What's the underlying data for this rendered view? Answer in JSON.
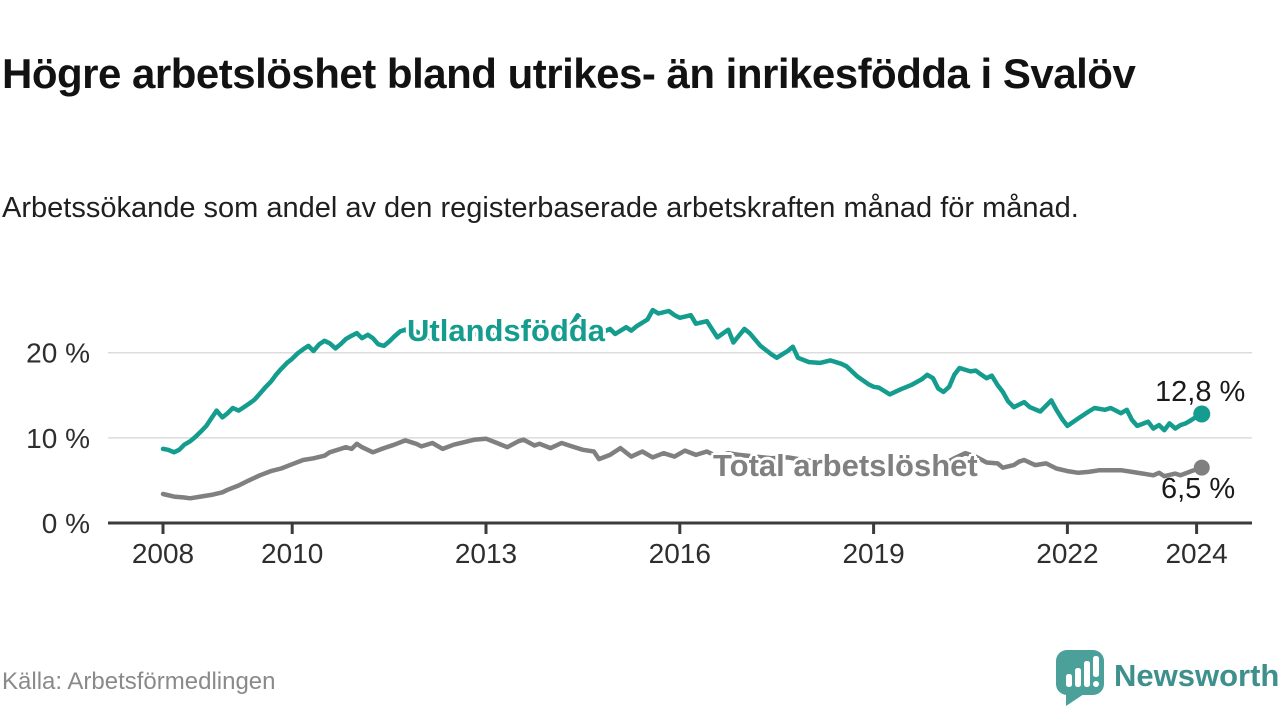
{
  "header": {
    "title": "Högre arbetslöshet bland utrikes- än inrikesfödda i Svalöv",
    "subtitle": "Arbetssökande som andel av den registerbaserade arbetskraften månad för månad."
  },
  "footer": {
    "source": "Källa: Arbetsförmedlingen",
    "logo_text": "Newsworthy"
  },
  "colors": {
    "teal": "#149c8f",
    "gray": "#808080",
    "axis": "#3b3b3b",
    "gridline": "#dcdcdc",
    "tick_text": "#2e2e2e",
    "logo_badge": "#4ca09a",
    "logo_text": "#3e908c"
  },
  "chart_data": {
    "type": "line",
    "title": "Högre arbetslöshet bland utrikes- än inrikesfödda i Svalöv",
    "subtitle": "Arbetssökande som andel av den registerbaserade arbetskraften månad för månad.",
    "unit": "%",
    "grid": "horizontal",
    "legend_position": "inline-labels",
    "xlim": [
      2007.6,
      2024.9
    ],
    "ylim": [
      0,
      26
    ],
    "x_ticks": [
      {
        "value": 2008,
        "label": "2008"
      },
      {
        "value": 2010,
        "label": "2010"
      },
      {
        "value": 2013,
        "label": "2013"
      },
      {
        "value": 2016,
        "label": "2016"
      },
      {
        "value": 2019,
        "label": "2019"
      },
      {
        "value": 2022,
        "label": "2022"
      },
      {
        "value": 2024,
        "label": "2024"
      }
    ],
    "y_ticks": [
      {
        "value": 0,
        "label": "0 %"
      },
      {
        "value": 10,
        "label": "10 %"
      },
      {
        "value": 20,
        "label": "20 %"
      }
    ],
    "series": [
      {
        "name": "Utlandsfödda",
        "color": "#149c8f",
        "end_label": "12,8 %",
        "end_value": 12.8,
        "points": [
          [
            2008.0,
            8.7
          ],
          [
            2008.08,
            8.6
          ],
          [
            2008.17,
            8.3
          ],
          [
            2008.25,
            8.6
          ],
          [
            2008.33,
            9.2
          ],
          [
            2008.42,
            9.6
          ],
          [
            2008.5,
            10.1
          ],
          [
            2008.58,
            10.7
          ],
          [
            2008.67,
            11.4
          ],
          [
            2008.75,
            12.3
          ],
          [
            2008.83,
            13.2
          ],
          [
            2008.92,
            12.4
          ],
          [
            2009.0,
            12.9
          ],
          [
            2009.08,
            13.5
          ],
          [
            2009.17,
            13.2
          ],
          [
            2009.25,
            13.6
          ],
          [
            2009.33,
            14.0
          ],
          [
            2009.42,
            14.5
          ],
          [
            2009.5,
            15.2
          ],
          [
            2009.58,
            15.9
          ],
          [
            2009.67,
            16.6
          ],
          [
            2009.75,
            17.4
          ],
          [
            2009.83,
            18.1
          ],
          [
            2009.92,
            18.8
          ],
          [
            2010.0,
            19.3
          ],
          [
            2010.08,
            19.9
          ],
          [
            2010.17,
            20.4
          ],
          [
            2010.25,
            20.8
          ],
          [
            2010.33,
            20.2
          ],
          [
            2010.42,
            21.0
          ],
          [
            2010.5,
            21.4
          ],
          [
            2010.58,
            21.1
          ],
          [
            2010.67,
            20.5
          ],
          [
            2010.75,
            21.0
          ],
          [
            2010.83,
            21.6
          ],
          [
            2010.92,
            22.0
          ],
          [
            2011.0,
            22.3
          ],
          [
            2011.08,
            21.7
          ],
          [
            2011.17,
            22.1
          ],
          [
            2011.25,
            21.7
          ],
          [
            2011.33,
            21.0
          ],
          [
            2011.42,
            20.8
          ],
          [
            2011.5,
            21.3
          ],
          [
            2011.58,
            21.9
          ],
          [
            2011.67,
            22.5
          ],
          [
            2011.75,
            22.7
          ],
          [
            2011.83,
            22.2
          ],
          [
            2011.92,
            22.5
          ],
          [
            2012.0,
            22.1
          ],
          [
            2012.17,
            21.6
          ],
          [
            2012.33,
            22.0
          ],
          [
            2012.5,
            21.5
          ],
          [
            2012.67,
            21.9
          ],
          [
            2012.83,
            22.2
          ],
          [
            2013.0,
            21.8
          ],
          [
            2013.17,
            22.2
          ],
          [
            2013.33,
            21.7
          ],
          [
            2013.5,
            22.0
          ],
          [
            2013.67,
            22.4
          ],
          [
            2013.83,
            21.9
          ],
          [
            2014.0,
            21.8
          ],
          [
            2014.17,
            22.3
          ],
          [
            2014.33,
            23.3
          ],
          [
            2014.42,
            24.4
          ],
          [
            2014.5,
            23.7
          ],
          [
            2014.58,
            22.9
          ],
          [
            2014.67,
            22.6
          ],
          [
            2014.83,
            22.5
          ],
          [
            2014.92,
            22.8
          ],
          [
            2015.0,
            22.2
          ],
          [
            2015.17,
            23.0
          ],
          [
            2015.25,
            22.6
          ],
          [
            2015.33,
            23.1
          ],
          [
            2015.5,
            23.9
          ],
          [
            2015.58,
            25.0
          ],
          [
            2015.67,
            24.6
          ],
          [
            2015.83,
            24.9
          ],
          [
            2015.92,
            24.4
          ],
          [
            2016.0,
            24.1
          ],
          [
            2016.17,
            24.4
          ],
          [
            2016.25,
            23.4
          ],
          [
            2016.42,
            23.7
          ],
          [
            2016.58,
            21.8
          ],
          [
            2016.75,
            22.7
          ],
          [
            2016.83,
            21.2
          ],
          [
            2017.0,
            22.8
          ],
          [
            2017.08,
            22.3
          ],
          [
            2017.25,
            20.8
          ],
          [
            2017.42,
            19.8
          ],
          [
            2017.5,
            19.4
          ],
          [
            2017.67,
            20.2
          ],
          [
            2017.75,
            20.7
          ],
          [
            2017.83,
            19.4
          ],
          [
            2018.0,
            18.9
          ],
          [
            2018.17,
            18.8
          ],
          [
            2018.33,
            19.1
          ],
          [
            2018.5,
            18.7
          ],
          [
            2018.58,
            18.4
          ],
          [
            2018.75,
            17.2
          ],
          [
            2018.92,
            16.3
          ],
          [
            2019.0,
            16.0
          ],
          [
            2019.08,
            15.9
          ],
          [
            2019.25,
            15.1
          ],
          [
            2019.42,
            15.7
          ],
          [
            2019.58,
            16.2
          ],
          [
            2019.75,
            16.9
          ],
          [
            2019.83,
            17.4
          ],
          [
            2019.92,
            17.0
          ],
          [
            2020.0,
            15.8
          ],
          [
            2020.08,
            15.4
          ],
          [
            2020.17,
            16.0
          ],
          [
            2020.25,
            17.4
          ],
          [
            2020.33,
            18.2
          ],
          [
            2020.5,
            17.8
          ],
          [
            2020.58,
            17.9
          ],
          [
            2020.67,
            17.4
          ],
          [
            2020.75,
            17.0
          ],
          [
            2020.83,
            17.3
          ],
          [
            2020.92,
            16.2
          ],
          [
            2021.0,
            15.4
          ],
          [
            2021.08,
            14.3
          ],
          [
            2021.17,
            13.6
          ],
          [
            2021.33,
            14.2
          ],
          [
            2021.42,
            13.6
          ],
          [
            2021.58,
            13.1
          ],
          [
            2021.75,
            14.4
          ],
          [
            2021.83,
            13.3
          ],
          [
            2021.92,
            12.2
          ],
          [
            2022.0,
            11.4
          ],
          [
            2022.17,
            12.3
          ],
          [
            2022.33,
            13.1
          ],
          [
            2022.42,
            13.5
          ],
          [
            2022.58,
            13.3
          ],
          [
            2022.67,
            13.5
          ],
          [
            2022.83,
            12.9
          ],
          [
            2022.92,
            13.3
          ],
          [
            2023.0,
            12.1
          ],
          [
            2023.08,
            11.4
          ],
          [
            2023.25,
            11.9
          ],
          [
            2023.33,
            11.1
          ],
          [
            2023.42,
            11.5
          ],
          [
            2023.5,
            10.9
          ],
          [
            2023.58,
            11.7
          ],
          [
            2023.67,
            11.1
          ],
          [
            2023.75,
            11.5
          ],
          [
            2023.83,
            11.7
          ],
          [
            2023.92,
            12.1
          ],
          [
            2024.0,
            12.5
          ],
          [
            2024.08,
            12.8
          ]
        ]
      },
      {
        "name": "Total arbetslöshet",
        "color": "#808080",
        "end_label": "6,5 %",
        "end_value": 6.5,
        "points": [
          [
            2008.0,
            3.4
          ],
          [
            2008.17,
            3.1
          ],
          [
            2008.33,
            3.0
          ],
          [
            2008.42,
            2.9
          ],
          [
            2008.58,
            3.1
          ],
          [
            2008.75,
            3.3
          ],
          [
            2008.92,
            3.6
          ],
          [
            2009.0,
            3.9
          ],
          [
            2009.17,
            4.4
          ],
          [
            2009.33,
            5.0
          ],
          [
            2009.5,
            5.6
          ],
          [
            2009.67,
            6.1
          ],
          [
            2009.83,
            6.4
          ],
          [
            2010.0,
            6.9
          ],
          [
            2010.17,
            7.4
          ],
          [
            2010.33,
            7.6
          ],
          [
            2010.5,
            7.9
          ],
          [
            2010.58,
            8.3
          ],
          [
            2010.75,
            8.7
          ],
          [
            2010.83,
            8.9
          ],
          [
            2010.92,
            8.7
          ],
          [
            2011.0,
            9.3
          ],
          [
            2011.08,
            8.9
          ],
          [
            2011.25,
            8.3
          ],
          [
            2011.42,
            8.8
          ],
          [
            2011.58,
            9.2
          ],
          [
            2011.75,
            9.7
          ],
          [
            2011.92,
            9.3
          ],
          [
            2012.0,
            9.0
          ],
          [
            2012.17,
            9.4
          ],
          [
            2012.33,
            8.7
          ],
          [
            2012.5,
            9.2
          ],
          [
            2012.67,
            9.5
          ],
          [
            2012.83,
            9.8
          ],
          [
            2013.0,
            9.9
          ],
          [
            2013.17,
            9.4
          ],
          [
            2013.33,
            8.9
          ],
          [
            2013.5,
            9.6
          ],
          [
            2013.58,
            9.8
          ],
          [
            2013.75,
            9.1
          ],
          [
            2013.83,
            9.3
          ],
          [
            2014.0,
            8.8
          ],
          [
            2014.17,
            9.4
          ],
          [
            2014.33,
            9.0
          ],
          [
            2014.5,
            8.6
          ],
          [
            2014.67,
            8.4
          ],
          [
            2014.75,
            7.5
          ],
          [
            2014.92,
            8.0
          ],
          [
            2015.08,
            8.8
          ],
          [
            2015.25,
            7.8
          ],
          [
            2015.42,
            8.4
          ],
          [
            2015.58,
            7.7
          ],
          [
            2015.75,
            8.2
          ],
          [
            2015.92,
            7.8
          ],
          [
            2016.08,
            8.5
          ],
          [
            2016.25,
            8.0
          ],
          [
            2016.42,
            8.4
          ],
          [
            2016.58,
            7.8
          ],
          [
            2016.75,
            8.2
          ],
          [
            2016.92,
            8.0
          ],
          [
            2017.17,
            7.8
          ],
          [
            2017.42,
            7.6
          ],
          [
            2017.67,
            7.7
          ],
          [
            2017.92,
            7.4
          ],
          [
            2018.17,
            7.2
          ],
          [
            2018.42,
            7.0
          ],
          [
            2018.67,
            7.1
          ],
          [
            2018.92,
            6.8
          ],
          [
            2019.17,
            6.6
          ],
          [
            2019.42,
            6.8
          ],
          [
            2019.67,
            7.0
          ],
          [
            2019.92,
            6.8
          ],
          [
            2020.08,
            6.9
          ],
          [
            2020.25,
            7.6
          ],
          [
            2020.42,
            8.2
          ],
          [
            2020.58,
            7.8
          ],
          [
            2020.75,
            7.1
          ],
          [
            2020.92,
            7.0
          ],
          [
            2021.0,
            6.5
          ],
          [
            2021.17,
            6.8
          ],
          [
            2021.25,
            7.2
          ],
          [
            2021.33,
            7.4
          ],
          [
            2021.5,
            6.8
          ],
          [
            2021.67,
            7.0
          ],
          [
            2021.83,
            6.4
          ],
          [
            2022.0,
            6.1
          ],
          [
            2022.17,
            5.9
          ],
          [
            2022.33,
            6.0
          ],
          [
            2022.5,
            6.2
          ],
          [
            2022.67,
            6.2
          ],
          [
            2022.83,
            6.2
          ],
          [
            2023.0,
            6.0
          ],
          [
            2023.17,
            5.8
          ],
          [
            2023.33,
            5.6
          ],
          [
            2023.42,
            5.9
          ],
          [
            2023.5,
            5.5
          ],
          [
            2023.67,
            5.8
          ],
          [
            2023.75,
            5.6
          ],
          [
            2023.92,
            6.1
          ],
          [
            2024.0,
            6.3
          ],
          [
            2024.08,
            6.5
          ]
        ]
      }
    ]
  }
}
